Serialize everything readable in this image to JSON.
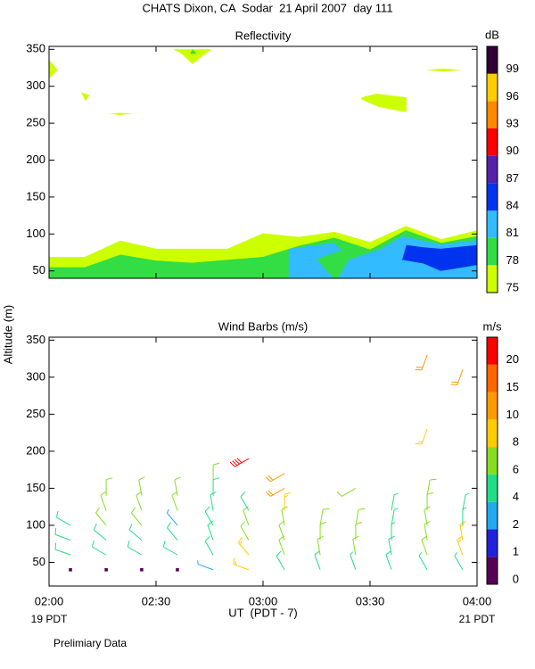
{
  "title": "CHATS Dixon, CA  Sodar  21 April 2007  day 111",
  "ylabel": "Altitude (m)",
  "footer": "Prelimiary Data",
  "chart_data": [
    {
      "type": "contour",
      "title": "Reflectivity",
      "xlim": [
        2,
        4
      ],
      "xticks": [
        2,
        2.5,
        3,
        3.5,
        4
      ],
      "ylim": [
        40,
        354
      ],
      "yticks": [
        50,
        100,
        150,
        200,
        250,
        300,
        350
      ],
      "colorbar": {
        "title": "dB",
        "ticks": [
          75,
          78,
          81,
          84,
          87,
          90,
          93,
          96,
          99
        ],
        "colors": [
          "#ccff00",
          "#33dd44",
          "#33bbff",
          "#0033ee",
          "#5522aa",
          "#ff0000",
          "#ff8800",
          "#ffcc00",
          "#330033"
        ]
      },
      "contours": [
        {
          "level": 75,
          "points": [
            [
              2,
              69
            ],
            [
              2.167,
              69
            ],
            [
              2.333,
              91
            ],
            [
              2.5,
              80
            ],
            [
              2.833,
              80
            ],
            [
              3,
              101
            ],
            [
              3.167,
              96
            ],
            [
              3.333,
              103
            ],
            [
              3.5,
              89
            ],
            [
              3.667,
              111
            ],
            [
              3.833,
              93
            ],
            [
              4,
              105
            ],
            [
              4,
              40
            ],
            [
              2,
              40
            ]
          ]
        },
        {
          "level": 78,
          "points": [
            [
              2,
              55
            ],
            [
              2.167,
              55
            ],
            [
              2.333,
              72
            ],
            [
              2.5,
              64
            ],
            [
              2.667,
              61
            ],
            [
              3,
              69
            ],
            [
              3.167,
              84
            ],
            [
              3.333,
              95
            ],
            [
              3.5,
              79
            ],
            [
              3.667,
              105
            ],
            [
              3.833,
              88
            ],
            [
              4,
              97
            ],
            [
              4,
              40
            ],
            [
              2,
              40
            ]
          ]
        },
        {
          "level": 81,
          "points": [
            [
              3.12,
              40
            ],
            [
              3.12,
              80
            ],
            [
              3.33,
              88
            ],
            [
              3.37,
              78
            ],
            [
              3.25,
              66
            ],
            [
              3.33,
              40
            ]
          ]
        },
        {
          "level": 81,
          "points": [
            [
              3.35,
              40
            ],
            [
              3.4,
              65
            ],
            [
              3.55,
              80
            ],
            [
              3.65,
              97
            ],
            [
              3.83,
              86
            ],
            [
              4,
              92
            ],
            [
              4,
              40
            ]
          ]
        },
        {
          "level": 84,
          "points": [
            [
              3.65,
              65
            ],
            [
              3.67,
              85
            ],
            [
              3.75,
              82
            ],
            [
              3.83,
              80
            ],
            [
              4,
              85
            ],
            [
              4,
              58
            ],
            [
              3.83,
              50
            ],
            [
              3.75,
              60
            ]
          ]
        },
        {
          "level": 75,
          "points": [
            [
              2,
              336
            ],
            [
              2.04,
              322
            ],
            [
              2,
              310
            ]
          ]
        },
        {
          "level": 75,
          "points": [
            [
              2.15,
              292
            ],
            [
              2.19,
              288
            ],
            [
              2.17,
              280
            ]
          ]
        },
        {
          "level": 75,
          "points": [
            [
              2.28,
              263
            ],
            [
              2.33,
              264
            ],
            [
              2.39,
              263
            ],
            [
              2.33,
              261
            ]
          ]
        },
        {
          "level": 75,
          "points": [
            [
              2.58,
              350
            ],
            [
              2.76,
              350
            ],
            [
              2.73,
              344
            ],
            [
              2.67,
              330
            ],
            [
              2.62,
              344
            ]
          ]
        },
        {
          "level": 78,
          "points": [
            [
              2.66,
              344
            ],
            [
              2.67,
              350
            ],
            [
              2.69,
              344
            ]
          ]
        },
        {
          "level": 75,
          "points": [
            [
              3.46,
              285
            ],
            [
              3.53,
              290
            ],
            [
              3.67,
              285
            ],
            [
              3.67,
              265
            ],
            [
              3.54,
              272
            ],
            [
              3.46,
              282
            ]
          ]
        },
        {
          "level": 75,
          "points": [
            [
              3.76,
              322
            ],
            [
              3.84,
              324
            ],
            [
              3.93,
              322
            ],
            [
              3.84,
              320
            ]
          ]
        }
      ]
    },
    {
      "type": "barbs",
      "title": "Wind Barbs (m/s)",
      "xlabel": "UT  (PDT - 7)",
      "x_sublabels": [
        "19 PDT",
        "21 PDT"
      ],
      "xlim": [
        2,
        4
      ],
      "xticks": [
        {
          "value": 2,
          "label": "02:00"
        },
        {
          "value": 2.5,
          "label": "02:30"
        },
        {
          "value": 3,
          "label": "03:00"
        },
        {
          "value": 3.5,
          "label": "03:30"
        },
        {
          "value": 4,
          "label": "04:00"
        }
      ],
      "ylim": [
        18,
        354
      ],
      "yticks": [
        50,
        100,
        150,
        200,
        250,
        300,
        350
      ],
      "colorbar": {
        "title": "m/s",
        "ticks": [
          0,
          1,
          2,
          4,
          6,
          8,
          10,
          15,
          20
        ],
        "colors": [
          "#550055",
          "#2222dd",
          "#22aaee",
          "#22dd88",
          "#88dd22",
          "#ffcc00",
          "#ff9900",
          "#ff6600",
          "#ff0000"
        ]
      },
      "barbs": {
        "x": [
          2.1,
          2.1,
          2.1,
          2.1,
          2.267,
          2.267,
          2.267,
          2.267,
          2.267,
          2.267,
          2.433,
          2.433,
          2.433,
          2.433,
          2.433,
          2.433,
          2.6,
          2.6,
          2.6,
          2.6,
          2.6,
          2.6,
          2.767,
          2.767,
          2.767,
          2.767,
          2.767,
          2.767,
          2.767,
          2.933,
          2.933,
          2.933,
          2.933,
          2.933,
          2.933,
          3.1,
          3.1,
          3.1,
          3.1,
          3.1,
          3.1,
          3.1,
          3.267,
          3.267,
          3.267,
          3.267,
          3.433,
          3.433,
          3.433,
          3.433,
          3.433,
          3.6,
          3.6,
          3.6,
          3.6,
          3.6,
          3.767,
          3.767,
          3.767,
          3.767,
          3.767,
          3.767,
          3.767,
          3.767,
          3.933,
          3.933,
          3.933,
          3.933,
          3.933,
          3.933
        ],
        "y": [
          40,
          60,
          80,
          100,
          40,
          60,
          80,
          100,
          120,
          140,
          40,
          60,
          80,
          100,
          120,
          140,
          40,
          60,
          80,
          100,
          120,
          140,
          40,
          60,
          80,
          100,
          120,
          140,
          160,
          40,
          60,
          80,
          100,
          120,
          190,
          40,
          60,
          80,
          100,
          120,
          150,
          170,
          40,
          60,
          80,
          100,
          40,
          60,
          80,
          100,
          150,
          40,
          60,
          80,
          100,
          120,
          40,
          60,
          80,
          100,
          120,
          140,
          230,
          330,
          40,
          60,
          80,
          100,
          120,
          310
        ],
        "speed": [
          0.5,
          5,
          5,
          5,
          0.5,
          5,
          5,
          6,
          7,
          7,
          0.5,
          5,
          5,
          6,
          7,
          7,
          0.5,
          5,
          5,
          3,
          7,
          6,
          3,
          5,
          5,
          5,
          5,
          5,
          6,
          9,
          9,
          7,
          6,
          5,
          20,
          5,
          6,
          6,
          7,
          8,
          11,
          11,
          5,
          6,
          6,
          6,
          4,
          6,
          6,
          6,
          6,
          5,
          5,
          4,
          4,
          4,
          4,
          6,
          6,
          6,
          6,
          6,
          9,
          10,
          4,
          8,
          8,
          4,
          4,
          10
        ],
        "direction": [
          0,
          290,
          290,
          300,
          0,
          300,
          310,
          320,
          340,
          0,
          0,
          300,
          310,
          320,
          340,
          350,
          0,
          300,
          320,
          320,
          340,
          350,
          290,
          330,
          340,
          330,
          350,
          0,
          0,
          290,
          320,
          330,
          340,
          330,
          240,
          330,
          340,
          340,
          350,
          0,
          240,
          240,
          340,
          350,
          0,
          10,
          340,
          350,
          0,
          10,
          240,
          340,
          350,
          0,
          10,
          10,
          330,
          340,
          350,
          350,
          0,
          10,
          200,
          200,
          330,
          340,
          350,
          0,
          10,
          200
        ]
      }
    }
  ]
}
